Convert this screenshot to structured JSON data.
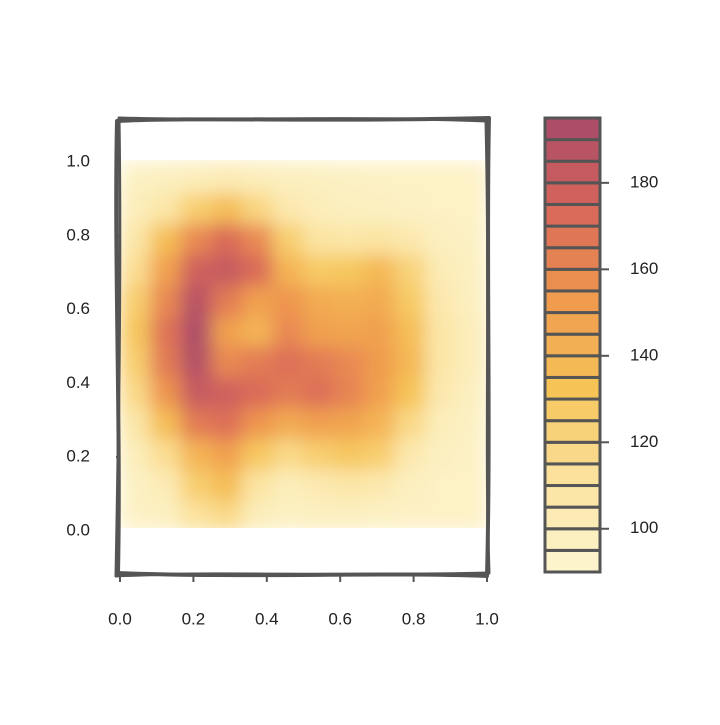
{
  "chart_data": {
    "type": "heatmap",
    "x": [
      0.0417,
      0.125,
      0.2083,
      0.2917,
      0.375,
      0.4583,
      0.5417,
      0.625,
      0.7083,
      0.7917,
      0.875,
      0.9583
    ],
    "y": [
      0.0417,
      0.125,
      0.2083,
      0.2917,
      0.375,
      0.4583,
      0.5417,
      0.625,
      0.7083,
      0.7917,
      0.875,
      0.9583
    ],
    "z": [
      [
        95,
        97,
        112,
        118,
        100,
        96,
        97,
        97,
        96,
        95,
        95,
        95
      ],
      [
        96,
        102,
        125,
        135,
        110,
        100,
        104,
        108,
        105,
        98,
        95,
        95
      ],
      [
        100,
        115,
        140,
        150,
        130,
        118,
        125,
        130,
        125,
        105,
        97,
        95
      ],
      [
        108,
        135,
        165,
        170,
        155,
        145,
        150,
        148,
        140,
        118,
        100,
        96
      ],
      [
        118,
        155,
        182,
        178,
        172,
        165,
        170,
        162,
        150,
        132,
        105,
        98
      ],
      [
        125,
        165,
        190,
        160,
        165,
        170,
        165,
        160,
        152,
        138,
        108,
        100
      ],
      [
        130,
        168,
        192,
        150,
        140,
        160,
        150,
        148,
        150,
        135,
        108,
        100
      ],
      [
        125,
        160,
        188,
        165,
        150,
        155,
        145,
        142,
        145,
        128,
        105,
        98
      ],
      [
        115,
        150,
        178,
        182,
        172,
        140,
        128,
        130,
        138,
        122,
        102,
        97
      ],
      [
        108,
        135,
        160,
        172,
        160,
        125,
        110,
        108,
        110,
        105,
        98,
        96
      ],
      [
        100,
        108,
        125,
        135,
        120,
        105,
        100,
        98,
        97,
        96,
        95,
        95
      ],
      [
        96,
        98,
        100,
        102,
        100,
        98,
        97,
        96,
        95,
        95,
        95,
        95
      ]
    ],
    "xlim": [
      0,
      1
    ],
    "ylim": [
      -0.12,
      1.12
    ],
    "xticks": [
      {
        "value": 0,
        "label": "0.0"
      },
      {
        "value": 0.2,
        "label": "0.2"
      },
      {
        "value": 0.4,
        "label": "0.4"
      },
      {
        "value": 0.6,
        "label": "0.6"
      },
      {
        "value": 0.8,
        "label": "0.8"
      },
      {
        "value": 1,
        "label": "1.0"
      }
    ],
    "yticks": [
      {
        "value": 0,
        "label": "0.0"
      },
      {
        "value": 0.2,
        "label": "0.2"
      },
      {
        "value": 0.4,
        "label": "0.4"
      },
      {
        "value": 0.6,
        "label": "0.6"
      },
      {
        "value": 0.8,
        "label": "0.8"
      },
      {
        "value": 1,
        "label": "1.0"
      }
    ],
    "zlim": [
      90,
      195
    ],
    "zticks": [
      100,
      120,
      140,
      160,
      180
    ],
    "colors": [
      "#fdf6d2",
      "#fbe3a0",
      "#f6c457",
      "#f09a4e",
      "#d8665a",
      "#a84a6a"
    ]
  }
}
